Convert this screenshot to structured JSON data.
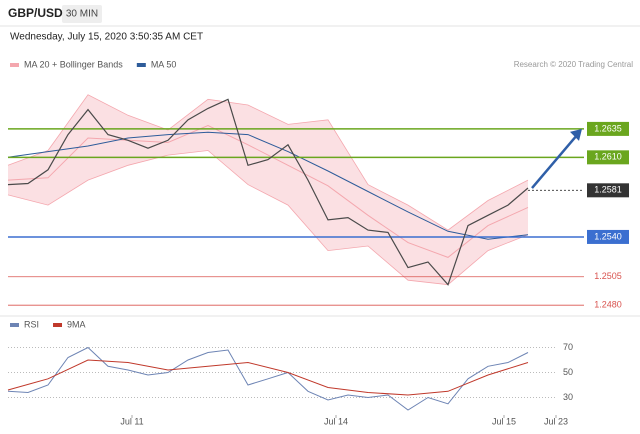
{
  "header": {
    "symbol": "GBP/USD",
    "timeframe": "30 MIN",
    "datetime": "Wednesday, July 15, 2020 3:50:35 AM CET",
    "credit": "Research © 2020 Trading Central"
  },
  "chart_data": [
    {
      "type": "line",
      "xlim": [
        0,
        144
      ],
      "ylim": [
        1.2474,
        1.2678
      ],
      "close": {
        "color": "#4a4a4a",
        "x": [
          0,
          5,
          10,
          15,
          20,
          25,
          30,
          35,
          40,
          45,
          50,
          55,
          60,
          65,
          70,
          75,
          80,
          85,
          90,
          95,
          100,
          105,
          110,
          115,
          120,
          125,
          130
        ],
        "values": [
          1.2586,
          1.2587,
          1.2599,
          1.263,
          1.2652,
          1.263,
          1.2625,
          1.2618,
          1.2625,
          1.2643,
          1.2653,
          1.2661,
          1.2603,
          1.2608,
          1.2621,
          1.259,
          1.2555,
          1.2557,
          1.2546,
          1.2544,
          1.2513,
          1.2518,
          1.2498,
          1.255,
          1.2559,
          1.2568,
          1.2583
        ]
      },
      "series": [
        {
          "name": "MA 20 + Bollinger Bands",
          "color": "#f4a7ae",
          "x": [
            0,
            10,
            20,
            30,
            40,
            50,
            60,
            70,
            80,
            90,
            100,
            110,
            120,
            130
          ],
          "values": [
            1.259,
            1.2592,
            1.2627,
            1.2625,
            1.2623,
            1.2638,
            1.2621,
            1.2603,
            1.2585,
            1.2559,
            1.2535,
            1.2522,
            1.255,
            1.2566
          ],
          "upper": [
            1.2603,
            1.2616,
            1.2665,
            1.2647,
            1.2634,
            1.2661,
            1.2656,
            1.2639,
            1.2643,
            1.2586,
            1.2568,
            1.2546,
            1.2572,
            1.259
          ],
          "lower": [
            1.2577,
            1.2568,
            1.259,
            1.2603,
            1.2612,
            1.2616,
            1.2586,
            1.2568,
            1.2528,
            1.2532,
            1.2502,
            1.2498,
            1.2528,
            1.2542
          ]
        },
        {
          "name": "MA 50",
          "color": "#2e5c9a",
          "x": [
            0,
            10,
            20,
            30,
            40,
            50,
            60,
            70,
            80,
            90,
            100,
            110,
            120,
            130
          ],
          "values": [
            1.261,
            1.2615,
            1.262,
            1.2627,
            1.263,
            1.2632,
            1.263,
            1.2615,
            1.2598,
            1.258,
            1.2562,
            1.2545,
            1.2538,
            1.2542
          ]
        }
      ],
      "levels": [
        {
          "value": 1.2635,
          "label": "1.2635",
          "color": "#6aa61e",
          "label_box": true,
          "dashed": false
        },
        {
          "value": 1.261,
          "label": "1.2610",
          "color": "#6aa61e",
          "label_box": true,
          "dashed": false
        },
        {
          "value": 1.2581,
          "label": "1.2581",
          "color": "#333333",
          "label_box": true,
          "dashed": true
        },
        {
          "value": 1.254,
          "label": "1.2540",
          "color": "#3b6fd0",
          "label_box": true,
          "dashed": false
        },
        {
          "value": 1.2505,
          "label": "1.2505",
          "color": "#d9534f",
          "label_box": false,
          "dashed": false
        },
        {
          "value": 1.248,
          "label": "1.2480",
          "color": "#d9534f",
          "label_box": false,
          "dashed": false
        }
      ]
    },
    {
      "type": "line",
      "xlim": [
        0,
        144
      ],
      "ylim": [
        16,
        76
      ],
      "yticks": [
        70,
        50,
        30
      ],
      "grid": true,
      "xticks": [
        {
          "value": 31,
          "label": "Jul 11"
        },
        {
          "value": 82,
          "label": "Jul 14"
        },
        {
          "value": 124,
          "label": "Jul 15"
        },
        {
          "value": 137,
          "label": "Jul 23"
        }
      ],
      "series": [
        {
          "name": "RSI",
          "color": "#6d84b4",
          "x": [
            0,
            5,
            10,
            15,
            20,
            25,
            30,
            35,
            40,
            45,
            50,
            55,
            60,
            65,
            70,
            75,
            80,
            85,
            90,
            95,
            100,
            105,
            110,
            115,
            120,
            125,
            130
          ],
          "values": [
            35,
            34,
            40,
            62,
            70,
            55,
            52,
            48,
            50,
            60,
            66,
            68,
            40,
            45,
            50,
            35,
            28,
            32,
            30,
            32,
            20,
            30,
            25,
            45,
            55,
            58,
            66
          ]
        },
        {
          "name": "9MA",
          "color": "#c0392b",
          "x": [
            0,
            10,
            20,
            30,
            40,
            50,
            60,
            70,
            80,
            90,
            100,
            110,
            120,
            130
          ],
          "values": [
            36,
            45,
            60,
            58,
            52,
            55,
            58,
            50,
            38,
            34,
            32,
            35,
            48,
            58
          ]
        }
      ]
    }
  ]
}
